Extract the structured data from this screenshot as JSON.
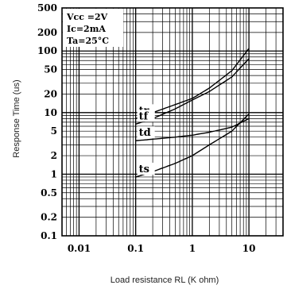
{
  "chart_data": {
    "type": "line",
    "xscale": "log",
    "yscale": "log",
    "xlim": [
      0.005,
      40
    ],
    "ylim": [
      0.1,
      500
    ],
    "grid": true,
    "xlabel": "Load resistance RL (K ohm)",
    "ylabel": "Response Time (us)",
    "x_tick_labels": [
      {
        "value": 0.01,
        "label": "0.01"
      },
      {
        "value": 0.1,
        "label": "0.1"
      },
      {
        "value": 1,
        "label": "1"
      },
      {
        "value": 10,
        "label": "10"
      }
    ],
    "y_tick_labels": [
      {
        "value": 500,
        "label": "500"
      },
      {
        "value": 200,
        "label": "200"
      },
      {
        "value": 100,
        "label": "100"
      },
      {
        "value": 50,
        "label": "50"
      },
      {
        "value": 20,
        "label": "20"
      },
      {
        "value": 10,
        "label": "10"
      },
      {
        "value": 5,
        "label": "5"
      },
      {
        "value": 2,
        "label": "2"
      },
      {
        "value": 1,
        "label": "1"
      },
      {
        "value": 0.5,
        "label": "0.5"
      },
      {
        "value": 0.2,
        "label": "0.2"
      },
      {
        "value": 0.1,
        "label": "0.1"
      }
    ],
    "conditions": [
      "Vcc =2V",
      "Ic=2mA",
      "Ta=25°C"
    ],
    "series": [
      {
        "name": "tr",
        "x": [
          0.1,
          0.2,
          0.5,
          1,
          2,
          5,
          10
        ],
        "y": [
          8,
          10,
          13.5,
          17,
          25,
          48,
          110
        ]
      },
      {
        "name": "tf",
        "x": [
          0.1,
          0.2,
          0.5,
          1,
          2,
          5,
          10
        ],
        "y": [
          6.5,
          8,
          11.5,
          16,
          22,
          38,
          75
        ]
      },
      {
        "name": "td",
        "x": [
          0.1,
          0.2,
          0.5,
          1,
          2,
          5,
          10
        ],
        "y": [
          3.5,
          3.7,
          4.0,
          4.3,
          4.8,
          5.8,
          8.0
        ]
      },
      {
        "name": "ts",
        "x": [
          0.1,
          0.2,
          0.5,
          1,
          2,
          5,
          10
        ],
        "y": [
          0.9,
          1.1,
          1.5,
          2.0,
          3.0,
          5.0,
          9.5
        ]
      }
    ]
  }
}
